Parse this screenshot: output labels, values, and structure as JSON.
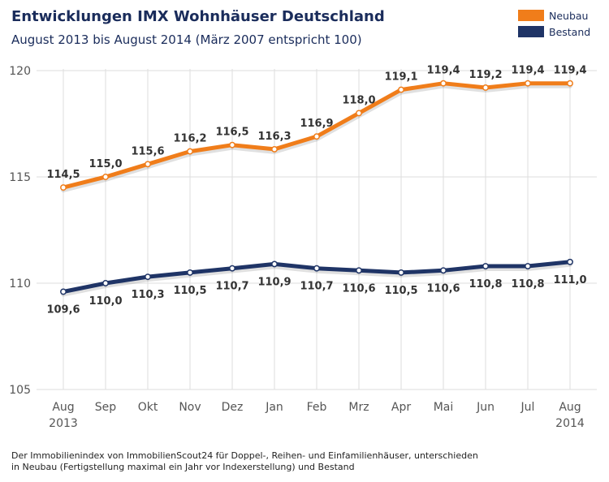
{
  "colors": {
    "neubau": "#f07d1a",
    "bestand": "#1f3466",
    "title": "#1a2c5b",
    "grid": "#dddddd",
    "axis_text": "#555555",
    "label_text": "#333333"
  },
  "chart_data": {
    "type": "line",
    "title": "Entwicklungen IMX Wohnhäuser Deutschland",
    "subtitle": "August 2013 bis August 2014 (März 2007 entspricht 100)",
    "categories": [
      "Aug",
      "Sep",
      "Okt",
      "Nov",
      "Dez",
      "Jan",
      "Feb",
      "Mrz",
      "Apr",
      "Mai",
      "Jun",
      "Jul",
      "Aug"
    ],
    "category_years": {
      "first": "2013",
      "last": "2014"
    },
    "yticks": [
      "120",
      "115",
      "110",
      "105"
    ],
    "ylim": [
      105,
      120
    ],
    "grid": true,
    "legend_position": "top-right",
    "series": [
      {
        "name": "Neubau",
        "color": "#f07d1a",
        "values": [
          114.5,
          115.0,
          115.6,
          116.2,
          116.5,
          116.3,
          116.9,
          118.0,
          119.1,
          119.4,
          119.2,
          119.4,
          119.4
        ],
        "labels": [
          "114,5",
          "115,0",
          "115,6",
          "116,2",
          "116,5",
          "116,3",
          "116,9",
          "118,0",
          "119,1",
          "119,4",
          "119,2",
          "119,4",
          "119,4"
        ]
      },
      {
        "name": "Bestand",
        "color": "#1f3466",
        "values": [
          109.6,
          110.0,
          110.3,
          110.5,
          110.7,
          110.9,
          110.7,
          110.6,
          110.5,
          110.6,
          110.8,
          110.8,
          111.0
        ],
        "labels": [
          "109,6",
          "110,0",
          "110,3",
          "110,5",
          "110,7",
          "110,9",
          "110,7",
          "110,6",
          "110,5",
          "110,6",
          "110,8",
          "110,8",
          "111,0"
        ]
      }
    ]
  },
  "footnote": {
    "line1": "Der Immobilienindex von ImmobilienScout24 für Doppel-, Reihen- und Einfamilienhäuser, unterschieden",
    "line2": "in Neubau (Fertigstellung maximal ein Jahr vor Indexerstellung) und Bestand"
  }
}
